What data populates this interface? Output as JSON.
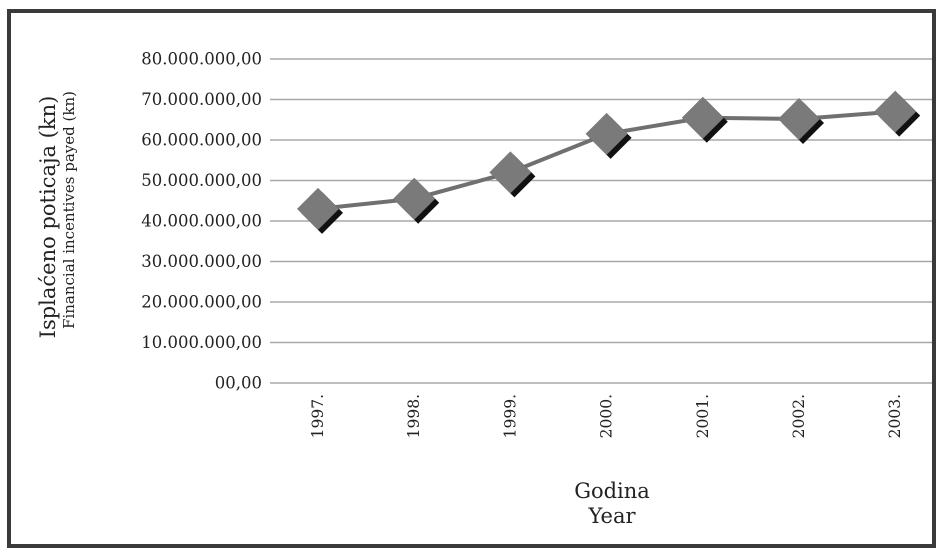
{
  "chart_data": {
    "type": "line",
    "categories": [
      "1997.",
      "1998.",
      "1999.",
      "2000.",
      "2001.",
      "2002.",
      "2003."
    ],
    "series": [
      {
        "values": [
          43000000,
          45500000,
          52000000,
          61500000,
          65500000,
          65200000,
          67000000
        ]
      }
    ],
    "ylim": [
      0,
      80000000
    ],
    "yticks": [
      "00,00",
      "10.000.000,00",
      "20.000.000,00",
      "30.000.000,00",
      "40.000.000,00",
      "50.000.000,00",
      "60.000.000,00",
      "70.000.000,00",
      "80.000.000,00"
    ],
    "ylabel": "Isplaćeno poticaja (kn)",
    "ylabel_secondary": "Financial incentives payed (kn)",
    "xlabel": "Godina",
    "xlabel_secondary": "Year",
    "grid": true,
    "colors": {
      "line": "#707070",
      "marker": "#7a7a7a",
      "marker_shadow": "#111111",
      "gridline": "#a8a8a8"
    }
  }
}
